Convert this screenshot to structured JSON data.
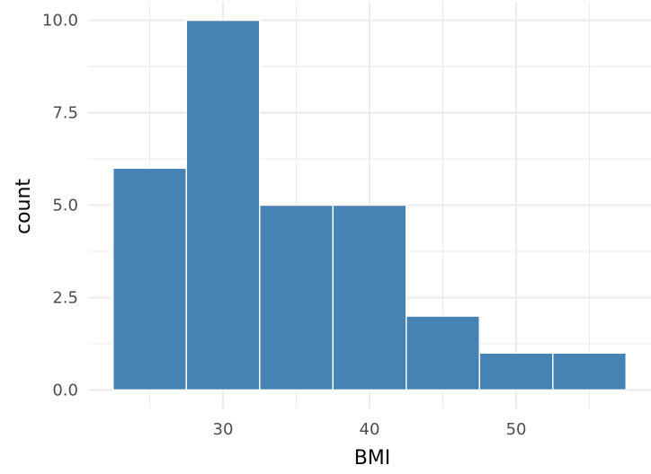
{
  "chart_data": {
    "type": "bar",
    "subtype": "histogram",
    "xlabel": "BMI",
    "ylabel": "count",
    "bins": [
      {
        "x0": 22.5,
        "x1": 27.5,
        "count": 6
      },
      {
        "x0": 27.5,
        "x1": 32.5,
        "count": 10
      },
      {
        "x0": 32.5,
        "x1": 37.5,
        "count": 5
      },
      {
        "x0": 37.5,
        "x1": 42.5,
        "count": 5
      },
      {
        "x0": 42.5,
        "x1": 47.5,
        "count": 2
      },
      {
        "x0": 47.5,
        "x1": 52.5,
        "count": 1
      },
      {
        "x0": 52.5,
        "x1": 57.5,
        "count": 1
      }
    ],
    "xlim": [
      20.8,
      59.2
    ],
    "ylim": [
      -0.5,
      10.5
    ],
    "x_ticks": [
      {
        "value": 30,
        "label": "30"
      },
      {
        "value": 40,
        "label": "40"
      },
      {
        "value": 50,
        "label": "50"
      }
    ],
    "y_ticks": [
      {
        "value": 0,
        "label": "0.0"
      },
      {
        "value": 2.5,
        "label": "2.5"
      },
      {
        "value": 5,
        "label": "5.0"
      },
      {
        "value": 7.5,
        "label": "7.5"
      },
      {
        "value": 10,
        "label": "10.0"
      }
    ],
    "x_minor_grid": [
      25,
      35,
      45,
      55
    ],
    "y_minor_grid": [
      1.25,
      3.75,
      6.25,
      8.75
    ],
    "grid": true,
    "legend": "none",
    "colors": {
      "bar_fill": "#4682b4",
      "bar_outline": "#ffffff",
      "grid": "#ebebeb",
      "background": "#ffffff"
    }
  }
}
